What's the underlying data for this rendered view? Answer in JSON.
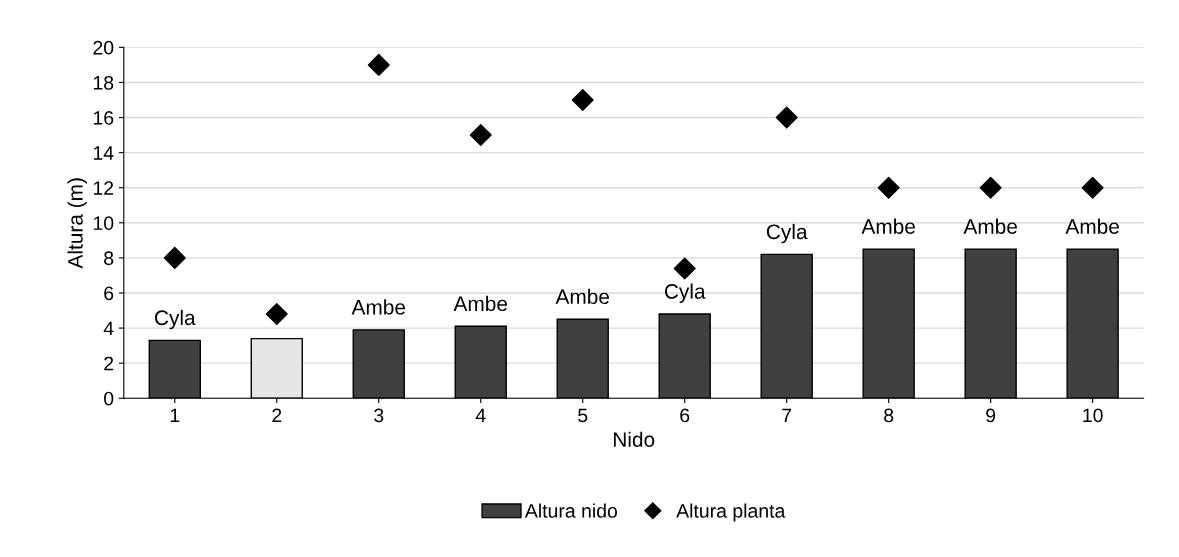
{
  "chart_data": {
    "type": "bar",
    "xlabel": "Nido",
    "ylabel": "Altura (m)",
    "categories": [
      "1",
      "2",
      "3",
      "4",
      "5",
      "6",
      "7",
      "8",
      "9",
      "10"
    ],
    "series": [
      {
        "name": "Altura nido",
        "color": "#404040",
        "colors": [
          "#404040",
          "#e6e6e6",
          "#404040",
          "#404040",
          "#404040",
          "#404040",
          "#404040",
          "#404040",
          "#404040",
          "#404040"
        ],
        "values": [
          3.3,
          3.4,
          3.9,
          4.1,
          4.5,
          4.8,
          8.2,
          8.5,
          8.5,
          8.5
        ]
      },
      {
        "name": "Altura planta",
        "type": "scatter",
        "color": "#000000",
        "marker": "diamond",
        "values": [
          8,
          4.8,
          19,
          15,
          17,
          7.4,
          16,
          12,
          12,
          12
        ]
      }
    ],
    "annotations": [
      {
        "text": "Cyla",
        "x": "1",
        "y": 3.3
      },
      {
        "text": "Ambe",
        "x": "3",
        "y": 3.9
      },
      {
        "text": "Ambe",
        "x": "4",
        "y": 4.1
      },
      {
        "text": "Ambe",
        "x": "5",
        "y": 4.5
      },
      {
        "text": "Cyla",
        "x": "6",
        "y": 4.8
      },
      {
        "text": "Cyla",
        "x": "7",
        "y": 8.2
      },
      {
        "text": "Ambe",
        "x": "8",
        "y": 8.5
      },
      {
        "text": "Ambe",
        "x": "9",
        "y": 8.5
      },
      {
        "text": "Ambe",
        "x": "10",
        "y": 8.5
      }
    ],
    "ylim": [
      0,
      20
    ],
    "yticks": [
      0,
      2,
      4,
      6,
      8,
      10,
      12,
      14,
      16,
      18,
      20
    ],
    "grid": "y",
    "legend": "bottom"
  }
}
